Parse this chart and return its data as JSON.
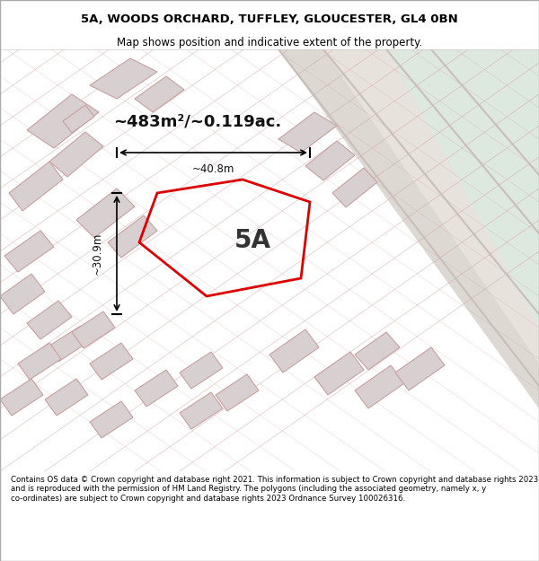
{
  "title_line1": "5A, WOODS ORCHARD, TUFFLEY, GLOUCESTER, GL4 0BN",
  "title_line2": "Map shows position and indicative extent of the property.",
  "footer_text": "Contains OS data © Crown copyright and database right 2021. This information is subject to Crown copyright and database rights 2023 and is reproduced with the permission of HM Land Registry. The polygons (including the associated geometry, namely x, y co-ordinates) are subject to Crown copyright and database rights 2023 Ordnance Survey 100026316.",
  "area_label": "~483m²/~0.119ac.",
  "plot_label": "5A",
  "width_label": "~40.8m",
  "height_label": "~30.9m",
  "bg_map_color": "#f5f0f0",
  "road_color": "#e8e0e0",
  "green_area_color": "#dde8df",
  "building_fill": "#d8d0d0",
  "building_stroke": "#c8a0a0",
  "red_polygon_color": "#dd0000",
  "title_bg": "#ffffff",
  "footer_bg": "#ffffff",
  "map_bg": "#f0ebe8"
}
